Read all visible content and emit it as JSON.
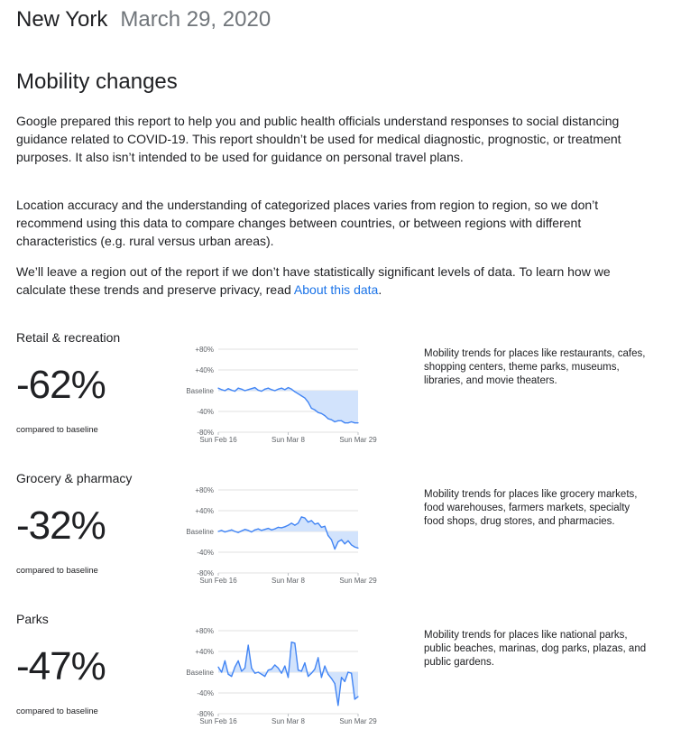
{
  "header": {
    "location": "New York",
    "date": "March 29, 2020"
  },
  "section_title": "Mobility changes",
  "paragraphs": {
    "p1": "Google prepared this report to help you and public health officials understand responses to social distancing guidance related to COVID-19. This report shouldn’t be used for medical diagnostic, prognostic, or treatment purposes. It also isn’t intended to be used for guidance on personal travel plans.",
    "p2": "Location accuracy and the understanding of categorized places varies from region to region, so we don’t recommend using this data to compare changes between countries, or between regions with different characteristics (e.g. rural versus urban areas).",
    "p3_before": "We’ll leave a region out of the report if we don’t have statistically significant levels of data. To learn how we calculate these trends and preserve privacy, read ",
    "p3_link": "About this data",
    "p3_after": "."
  },
  "colors": {
    "line": "#4285f4",
    "fill": "#d2e3fc",
    "grid": "#e0e0e0",
    "link": "#1a73e8"
  },
  "chart_data": [
    {
      "type": "line",
      "title": "Retail & recreation",
      "headline_value": "-62%",
      "headline_caption": "compared to baseline",
      "description": "Mobility trends for places like restaurants, cafes, shopping centers, theme parks, museums, libraries, and movie theaters.",
      "y_ticks": [
        "+80%",
        "+40%",
        "Baseline",
        "-40%",
        "-80%"
      ],
      "ylim": [
        -80,
        80
      ],
      "x_ticks": [
        "Sun Feb 16",
        "Sun Mar 8",
        "Sun Mar 29"
      ],
      "x_tick_days": [
        0,
        21,
        42
      ],
      "series": [
        {
          "x_days": [
            0,
            1,
            2,
            3,
            4,
            5,
            6,
            7,
            8,
            9,
            10,
            11,
            12,
            13,
            14,
            15,
            16,
            17,
            18,
            19,
            20,
            21,
            22,
            23,
            24,
            25,
            26,
            27,
            28,
            29,
            30,
            31,
            32,
            33,
            34,
            35,
            36,
            37,
            38,
            39,
            40,
            41,
            42
          ],
          "values": [
            5,
            2,
            0,
            4,
            1,
            -1,
            5,
            3,
            0,
            2,
            4,
            6,
            1,
            -1,
            3,
            5,
            2,
            0,
            3,
            5,
            2,
            6,
            3,
            -2,
            -6,
            -10,
            -14,
            -22,
            -34,
            -37,
            -42,
            -44,
            -48,
            -54,
            -56,
            -60,
            -58,
            -58,
            -62,
            -62,
            -60,
            -62,
            -62
          ]
        }
      ]
    },
    {
      "type": "line",
      "title": "Grocery & pharmacy",
      "headline_value": "-32%",
      "headline_caption": "compared to baseline",
      "description": "Mobility trends for places like grocery markets, food warehouses, farmers markets, specialty food shops, drug stores, and pharmacies.",
      "y_ticks": [
        "+80%",
        "+40%",
        "Baseline",
        "-40%",
        "-80%"
      ],
      "ylim": [
        -80,
        80
      ],
      "x_ticks": [
        "Sun Feb 16",
        "Sun Mar 8",
        "Sun Mar 29"
      ],
      "x_tick_days": [
        0,
        21,
        42
      ],
      "series": [
        {
          "x_days": [
            0,
            1,
            2,
            3,
            4,
            5,
            6,
            7,
            8,
            9,
            10,
            11,
            12,
            13,
            14,
            15,
            16,
            17,
            18,
            19,
            20,
            21,
            22,
            23,
            24,
            25,
            26,
            27,
            28,
            29,
            30,
            31,
            32,
            33,
            34,
            35,
            36,
            37,
            38,
            39,
            40,
            41,
            42
          ],
          "values": [
            0,
            2,
            -1,
            1,
            3,
            0,
            -2,
            1,
            4,
            2,
            -1,
            3,
            5,
            2,
            4,
            6,
            3,
            5,
            8,
            7,
            9,
            12,
            16,
            12,
            16,
            28,
            26,
            18,
            21,
            14,
            16,
            8,
            10,
            -8,
            -16,
            -34,
            -20,
            -16,
            -24,
            -18,
            -26,
            -30,
            -32
          ]
        }
      ]
    },
    {
      "type": "line",
      "title": "Parks",
      "headline_value": "-47%",
      "headline_caption": "compared to baseline",
      "description": "Mobility trends for places like national parks, public beaches, marinas, dog parks, plazas, and public gardens.",
      "y_ticks": [
        "+80%",
        "+40%",
        "Baseline",
        "-40%",
        "-80%"
      ],
      "ylim": [
        -80,
        80
      ],
      "x_ticks": [
        "Sun Feb 16",
        "Sun Mar 8",
        "Sun Mar 29"
      ],
      "x_tick_days": [
        0,
        21,
        42
      ],
      "series": [
        {
          "x_days": [
            0,
            1,
            2,
            3,
            4,
            5,
            6,
            7,
            8,
            9,
            10,
            11,
            12,
            13,
            14,
            15,
            16,
            17,
            18,
            19,
            20,
            21,
            22,
            23,
            24,
            25,
            26,
            27,
            28,
            29,
            30,
            31,
            32,
            33,
            34,
            35,
            36,
            37,
            38,
            39,
            40,
            41,
            42
          ],
          "values": [
            10,
            0,
            22,
            -4,
            -8,
            10,
            22,
            2,
            8,
            52,
            8,
            -2,
            0,
            -4,
            -8,
            4,
            6,
            14,
            8,
            -2,
            12,
            -10,
            58,
            56,
            4,
            2,
            18,
            -8,
            -2,
            6,
            28,
            -10,
            12,
            -4,
            -12,
            -22,
            -64,
            -10,
            -18,
            0,
            -2,
            -52,
            -47
          ]
        }
      ]
    }
  ]
}
